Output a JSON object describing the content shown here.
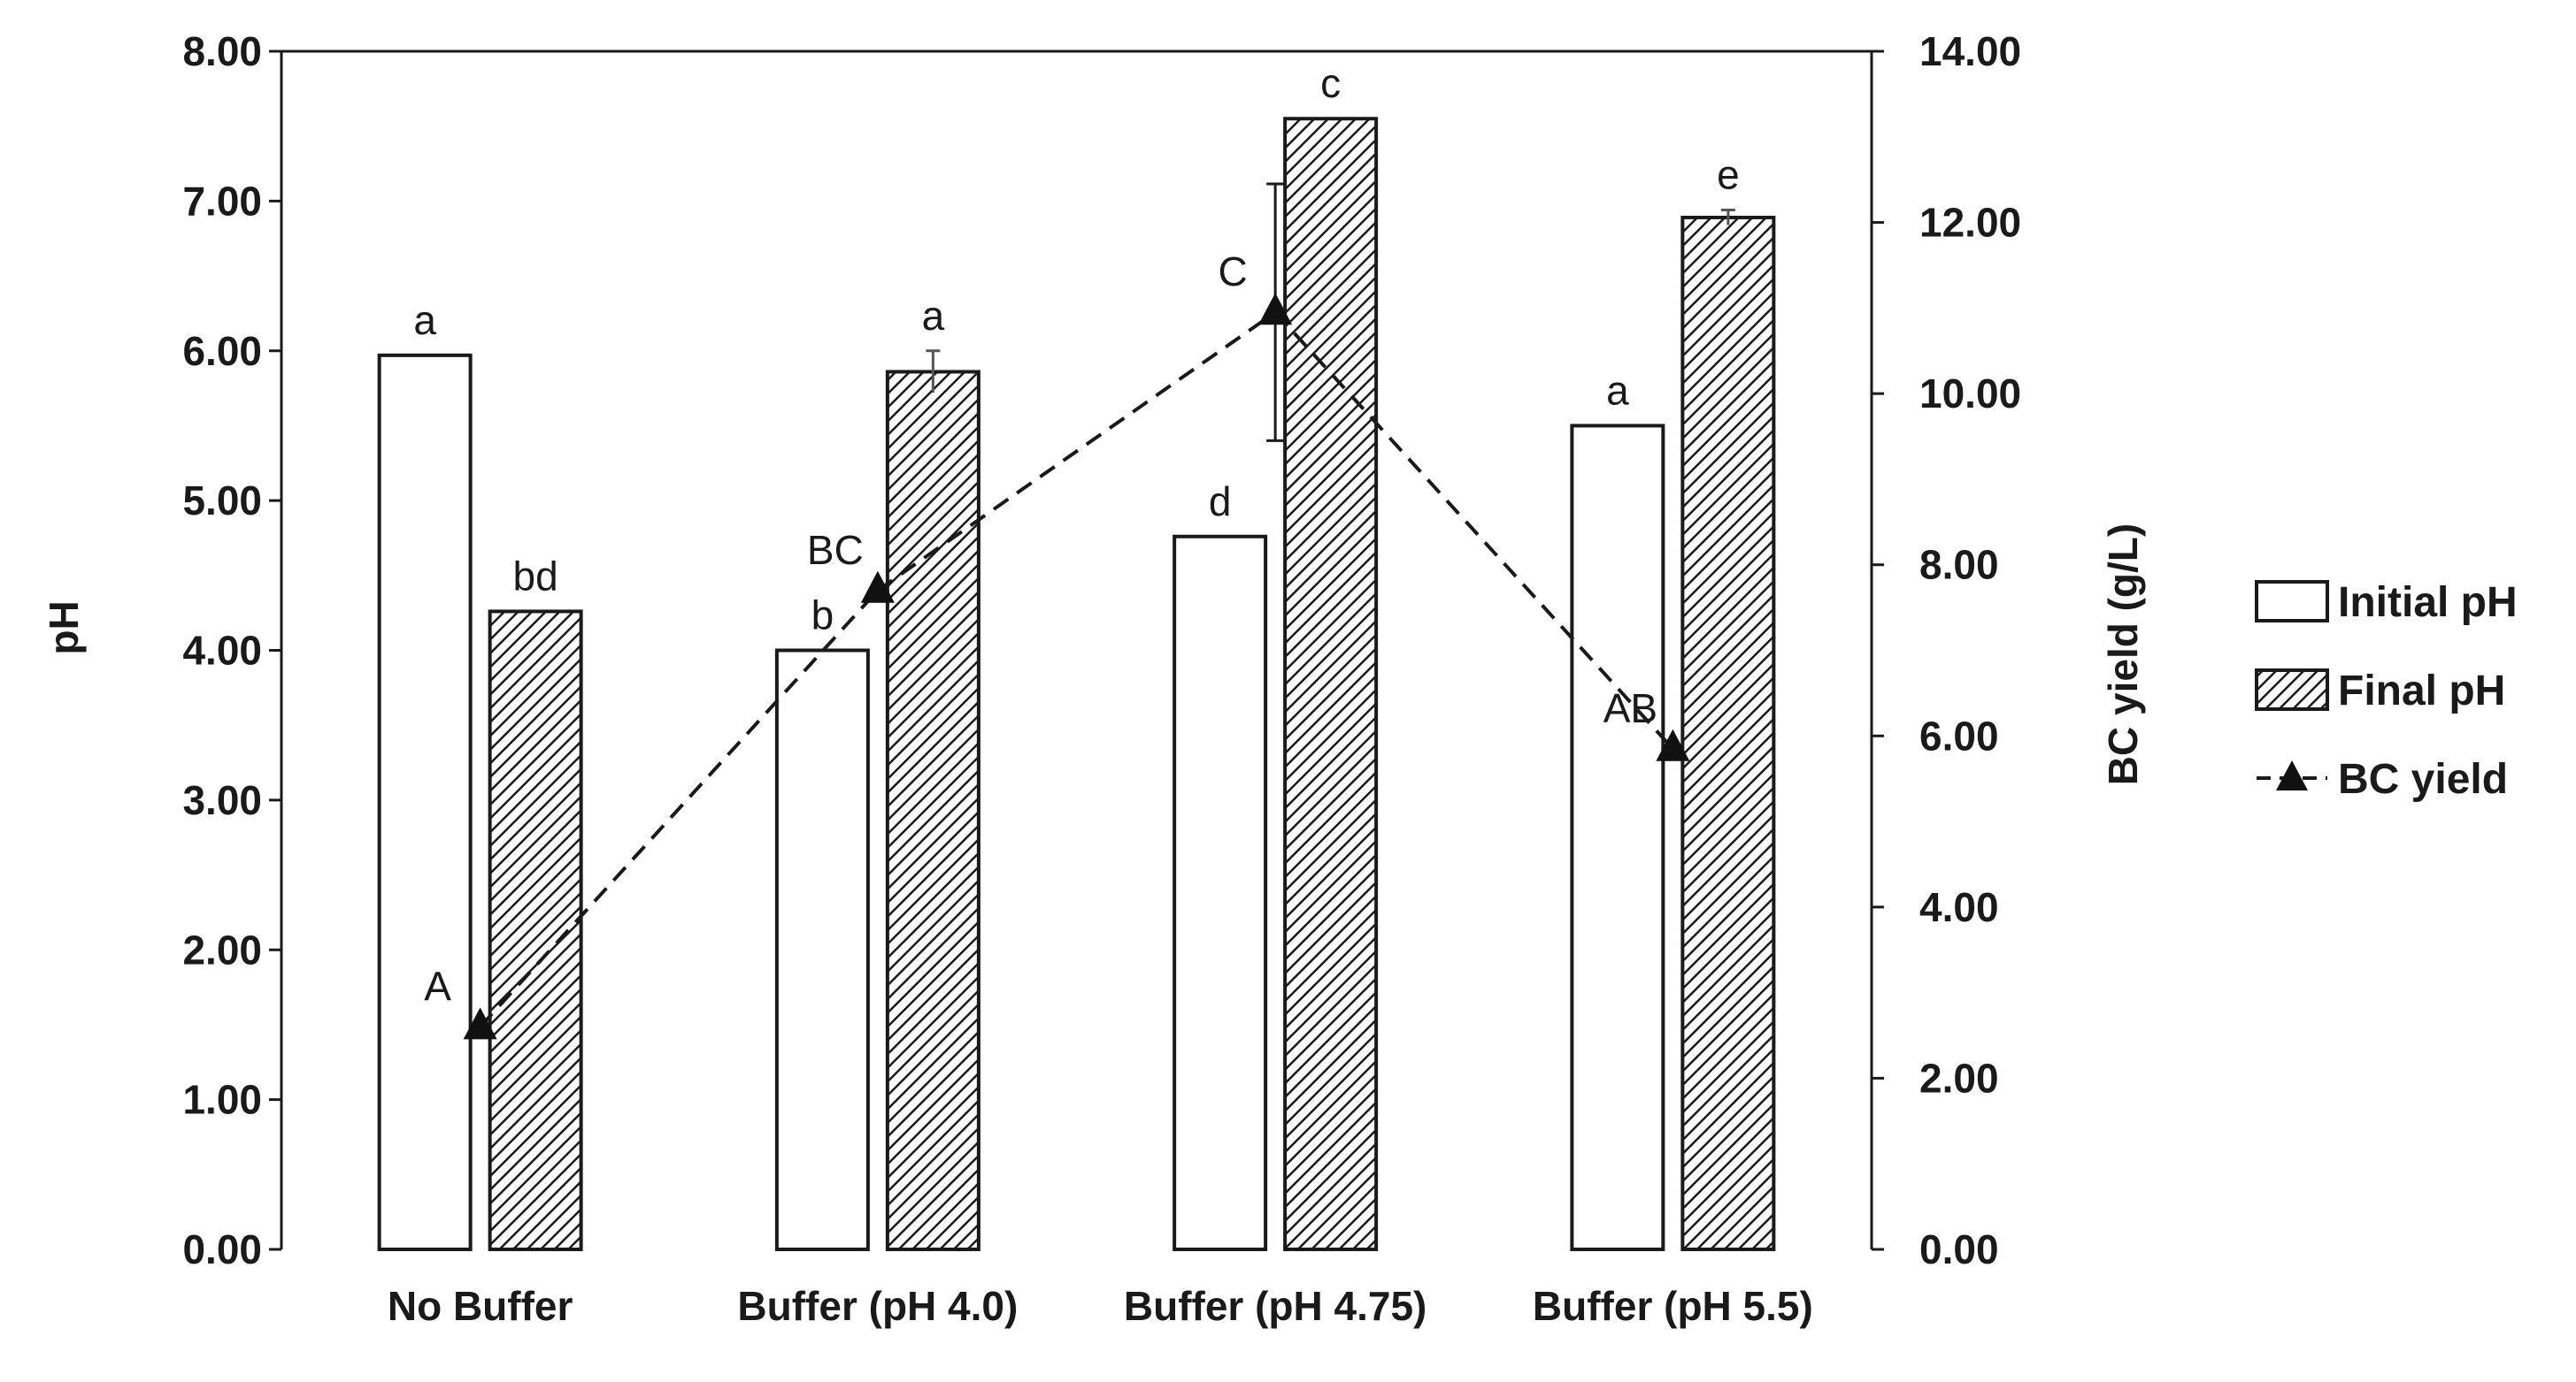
{
  "chart_data": {
    "type": "bar",
    "categories": [
      "No Buffer",
      "Buffer (pH 4.0)",
      "Buffer (pH 4.75)",
      "Buffer (pH 5.5)"
    ],
    "ylabel": "pH",
    "y2label": "BC yield (g/L)",
    "ylim": [
      0,
      8
    ],
    "y2lim": [
      0,
      14
    ],
    "yticks": [
      "0.00",
      "1.00",
      "2.00",
      "3.00",
      "4.00",
      "5.00",
      "6.00",
      "7.00",
      "8.00"
    ],
    "y2ticks": [
      "0.00",
      "2.00",
      "4.00",
      "6.00",
      "8.00",
      "10.00",
      "12.00",
      "14.00"
    ],
    "series": [
      {
        "name": "Initial pH",
        "kind": "bar",
        "fill": "white",
        "values": [
          5.97,
          4.0,
          4.76,
          5.5
        ],
        "errors": [
          0,
          0,
          0,
          0
        ],
        "letters": [
          "a",
          "b",
          "d",
          "a"
        ]
      },
      {
        "name": "Final pH",
        "kind": "bar",
        "fill": "hatched",
        "values": [
          4.26,
          5.86,
          7.55,
          6.89
        ],
        "errors": [
          0,
          0.14,
          0,
          0.05
        ],
        "letters": [
          "bd",
          "a",
          "c",
          "e"
        ]
      },
      {
        "name": "BC yield",
        "kind": "line",
        "axis": "right",
        "marker": "triangle",
        "style": "dashed",
        "values": [
          2.6,
          7.7,
          10.95,
          5.85
        ],
        "errors": [
          0,
          0,
          1.5,
          0
        ],
        "letters": [
          "A",
          "BC",
          "C",
          "AB"
        ]
      }
    ],
    "legend": [
      "Initial pH",
      "Final pH",
      "BC yield"
    ],
    "legend_position": "right",
    "grid": false
  }
}
